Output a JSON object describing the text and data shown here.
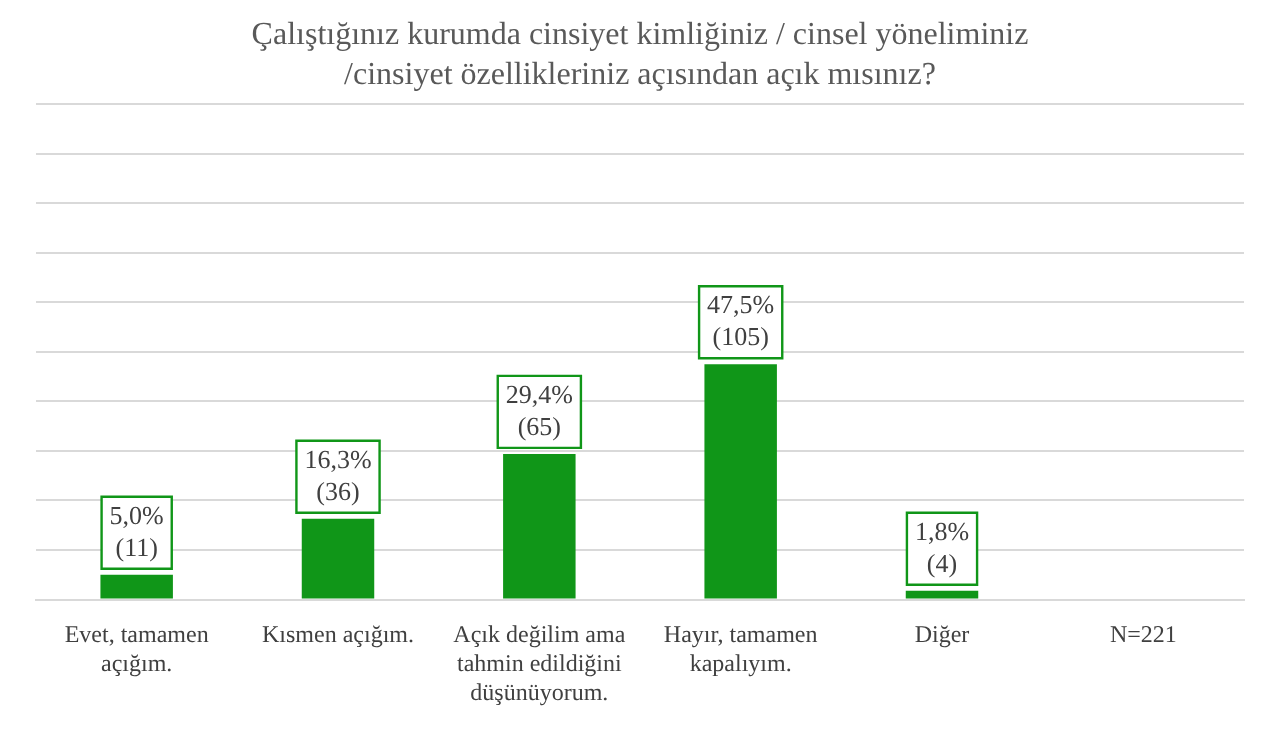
{
  "chart_data": {
    "type": "bar",
    "title": "Çalıştığınız kurumda cinsiyet kimliğiniz / cinsel yöneliminiz /cinsiyet özellikleriniz açısından açık mısınız?",
    "categories": [
      "Evet, tamamen açığım.",
      "Kısmen açığım.",
      "Açık değilim ama tahmin edildiğini düşünüyorum.",
      "Hayır, tamamen kapalıyım.",
      "Diğer",
      "N=221"
    ],
    "values": [
      5.0,
      16.3,
      29.4,
      47.5,
      1.8,
      null
    ],
    "value_labels": [
      "5,0%\n(11)",
      "16,3%\n(36)",
      "29,4%\n(65)",
      "47,5%\n(105)",
      "1,8%\n(4)",
      null
    ],
    "color": "#109618",
    "ylim": [
      0,
      100
    ],
    "grid": "y",
    "tick_labels": "x",
    "legend": false
  }
}
